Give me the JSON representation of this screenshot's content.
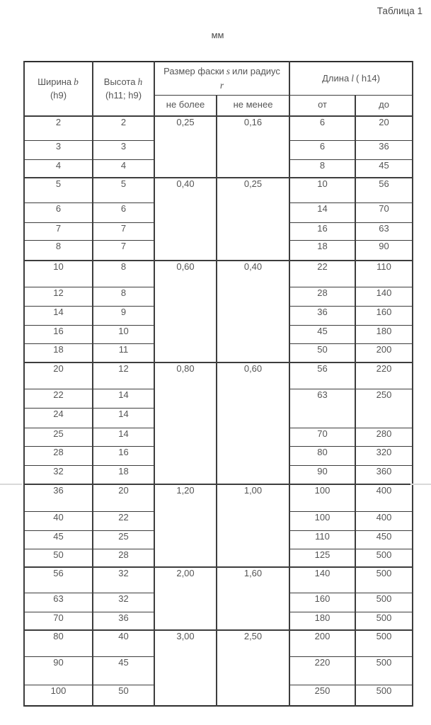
{
  "page": {
    "caption": "Таблица 1",
    "units": "мм"
  },
  "table": {
    "header": {
      "width_label": "Ширина",
      "width_symbol": "b",
      "width_tolerance": "(h9)",
      "height_label": "Высота",
      "height_symbol": "h",
      "height_tolerance": "(h11; h9)",
      "chamfer_label_prefix": "Размер фаски",
      "chamfer_symbol_s": "s",
      "chamfer_label_suffix": "или радиус",
      "chamfer_symbol_r": "r",
      "length_label": "Длина",
      "length_symbol": "l",
      "length_tolerance": "( h14)",
      "sub_not_more": "не более",
      "sub_not_less": "не менее",
      "sub_from": "от",
      "sub_to": "до"
    },
    "rows": [
      {
        "width": "2",
        "height": "2",
        "chamfer": {
          "not_more": "0,25",
          "not_less": "0,16",
          "rows": 3
        },
        "length": {
          "from": "6",
          "to": "20",
          "rows": 1
        }
      },
      {
        "width": "3",
        "height": "3",
        "length": {
          "from": "6",
          "to": "36",
          "rows": 1
        }
      },
      {
        "width": "4",
        "height": "4",
        "length": {
          "from": "8",
          "to": "45",
          "rows": 1
        }
      },
      {
        "width": "5",
        "height": "5",
        "chamfer": {
          "not_more": "0,40",
          "not_less": "0,25",
          "rows": 4
        },
        "length": {
          "from": "10",
          "to": "56",
          "rows": 1
        }
      },
      {
        "width": "6",
        "height": "6",
        "length": {
          "from": "14",
          "to": "70",
          "rows": 1
        }
      },
      {
        "width": "7",
        "height": "7",
        "length": {
          "from": "16",
          "to": "63",
          "rows": 1
        }
      },
      {
        "width": "8",
        "height": "7",
        "length": {
          "from": "18",
          "to": "90",
          "rows": 1
        }
      },
      {
        "width": "10",
        "height": "8",
        "chamfer": {
          "not_more": "0,60",
          "not_less": "0,40",
          "rows": 5
        },
        "length": {
          "from": "22",
          "to": "110",
          "rows": 1
        }
      },
      {
        "width": "12",
        "height": "8",
        "length": {
          "from": "28",
          "to": "140",
          "rows": 1
        }
      },
      {
        "width": "14",
        "height": "9",
        "length": {
          "from": "36",
          "to": "160",
          "rows": 1
        }
      },
      {
        "width": "16",
        "height": "10",
        "length": {
          "from": "45",
          "to": "180",
          "rows": 1
        }
      },
      {
        "width": "18",
        "height": "11",
        "length": {
          "from": "50",
          "to": "200",
          "rows": 1
        }
      },
      {
        "width": "20",
        "height": "12",
        "chamfer": {
          "not_more": "0,80",
          "not_less": "0,60",
          "rows": 6
        },
        "length": {
          "from": "56",
          "to": "220",
          "rows": 1
        }
      },
      {
        "width": "22",
        "height": "14",
        "length": {
          "from": "63",
          "to": "250",
          "rows": 2
        }
      },
      {
        "width": "24",
        "height": "14"
      },
      {
        "width": "25",
        "height": "14",
        "length": {
          "from": "70",
          "to": "280",
          "rows": 1
        }
      },
      {
        "width": "28",
        "height": "16",
        "length": {
          "from": "80",
          "to": "320",
          "rows": 1
        }
      },
      {
        "width": "32",
        "height": "18",
        "length": {
          "from": "90",
          "to": "360",
          "rows": 1
        }
      },
      {
        "width": "36",
        "height": "20",
        "chamfer": {
          "not_more": "1,20",
          "not_less": "1,00",
          "rows": 4
        },
        "length": {
          "from": "100",
          "to": "400",
          "rows": 1
        }
      },
      {
        "width": "40",
        "height": "22",
        "length": {
          "from": "100",
          "to": "400",
          "rows": 1
        }
      },
      {
        "width": "45",
        "height": "25",
        "length": {
          "from": "110",
          "to": "450",
          "rows": 1
        }
      },
      {
        "width": "50",
        "height": "28",
        "length": {
          "from": "125",
          "to": "500",
          "rows": 1
        }
      },
      {
        "width": "56",
        "height": "32",
        "chamfer": {
          "not_more": "2,00",
          "not_less": "1,60",
          "rows": 3
        },
        "length": {
          "from": "140",
          "to": "500",
          "rows": 1
        }
      },
      {
        "width": "63",
        "height": "32",
        "length": {
          "from": "160",
          "to": "500",
          "rows": 1
        }
      },
      {
        "width": "70",
        "height": "36",
        "length": {
          "from": "180",
          "to": "500",
          "rows": 1
        }
      },
      {
        "width": "80",
        "height": "40",
        "chamfer": {
          "not_more": "3,00",
          "not_less": "2,50",
          "rows": 3
        },
        "length": {
          "from": "200",
          "to": "500",
          "rows": 1
        }
      },
      {
        "width": "90",
        "height": "45",
        "length": {
          "from": "220",
          "to": "500",
          "rows": 1
        }
      },
      {
        "width": "100",
        "height": "50",
        "length": {
          "from": "250",
          "to": "500",
          "rows": 1
        }
      }
    ]
  }
}
